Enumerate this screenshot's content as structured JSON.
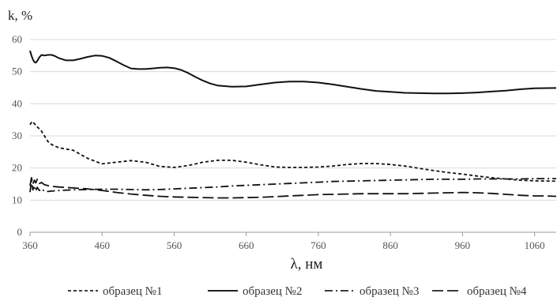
{
  "chart_data": {
    "type": "line",
    "ylabel": "k, %",
    "xlabel": "λ, нм",
    "xlim": [
      360,
      1090
    ],
    "ylim": [
      0,
      60
    ],
    "xticks": [
      360,
      460,
      560,
      660,
      760,
      860,
      960,
      1060
    ],
    "yticks": [
      0,
      10,
      20,
      30,
      40,
      50,
      60
    ],
    "grid": "horizontal",
    "legend_position": "bottom",
    "series": [
      {
        "name": "образец №1",
        "style": "dashed-short",
        "x": [
          360,
          363,
          366,
          370,
          375,
          380,
          385,
          390,
          400,
          420,
          440,
          460,
          480,
          500,
          520,
          540,
          560,
          580,
          600,
          620,
          640,
          660,
          680,
          700,
          720,
          740,
          760,
          780,
          800,
          820,
          840,
          860,
          880,
          900,
          920,
          940,
          960,
          980,
          1000,
          1020,
          1040,
          1060,
          1090
        ],
        "y": [
          33.5,
          34.5,
          33.8,
          32.8,
          31.8,
          30.0,
          28.2,
          27.3,
          26.3,
          25.5,
          23.0,
          21.3,
          21.8,
          22.3,
          21.8,
          20.5,
          20.2,
          20.8,
          21.8,
          22.4,
          22.4,
          21.8,
          21.0,
          20.3,
          20.2,
          20.2,
          20.3,
          20.6,
          21.1,
          21.4,
          21.4,
          21.1,
          20.6,
          19.9,
          19.2,
          18.6,
          18.1,
          17.5,
          17.0,
          16.6,
          16.2,
          16.0,
          15.9
        ]
      },
      {
        "name": "образец №2",
        "style": "solid",
        "x": [
          360,
          362,
          364,
          366,
          368,
          370,
          373,
          376,
          380,
          385,
          390,
          395,
          400,
          410,
          420,
          430,
          440,
          450,
          460,
          470,
          480,
          490,
          500,
          510,
          520,
          530,
          540,
          550,
          560,
          570,
          580,
          590,
          600,
          610,
          620,
          640,
          660,
          680,
          700,
          720,
          740,
          760,
          780,
          800,
          820,
          840,
          860,
          880,
          900,
          920,
          940,
          960,
          980,
          1000,
          1020,
          1040,
          1060,
          1090
        ],
        "y": [
          56.5,
          55.0,
          53.8,
          53.0,
          52.8,
          53.3,
          54.5,
          55.2,
          55.0,
          55.2,
          55.2,
          54.8,
          54.2,
          53.5,
          53.5,
          54.0,
          54.6,
          55.0,
          54.9,
          54.3,
          53.2,
          52.0,
          51.0,
          50.8,
          50.8,
          51.0,
          51.2,
          51.3,
          51.1,
          50.5,
          49.5,
          48.3,
          47.2,
          46.3,
          45.7,
          45.3,
          45.4,
          46.0,
          46.6,
          46.9,
          46.9,
          46.6,
          46.0,
          45.3,
          44.6,
          44.0,
          43.7,
          43.4,
          43.3,
          43.2,
          43.2,
          43.3,
          43.5,
          43.8,
          44.1,
          44.5,
          44.8,
          44.9
        ]
      },
      {
        "name": "образец №3",
        "style": "dash-dot",
        "x": [
          360,
          362,
          364,
          366,
          368,
          370,
          373,
          376,
          380,
          385,
          390,
          400,
          420,
          440,
          460,
          480,
          500,
          520,
          540,
          560,
          580,
          600,
          620,
          640,
          660,
          680,
          700,
          720,
          740,
          760,
          780,
          800,
          820,
          840,
          860,
          880,
          900,
          920,
          940,
          960,
          980,
          1000,
          1020,
          1040,
          1060,
          1090
        ],
        "y": [
          12.5,
          16.0,
          13.2,
          14.5,
          12.8,
          14.0,
          13.0,
          13.5,
          12.8,
          12.7,
          12.8,
          13.0,
          13.2,
          13.3,
          13.4,
          13.4,
          13.3,
          13.2,
          13.3,
          13.5,
          13.7,
          13.9,
          14.1,
          14.4,
          14.6,
          14.8,
          15.0,
          15.2,
          15.4,
          15.6,
          15.8,
          15.9,
          16.0,
          16.1,
          16.2,
          16.3,
          16.4,
          16.5,
          16.5,
          16.5,
          16.6,
          16.6,
          16.6,
          16.6,
          16.7,
          16.7
        ]
      },
      {
        "name": "образец №4",
        "style": "dashed-long",
        "x": [
          360,
          362,
          364,
          366,
          368,
          370,
          373,
          376,
          380,
          385,
          390,
          400,
          420,
          440,
          460,
          480,
          500,
          520,
          540,
          560,
          580,
          600,
          620,
          640,
          660,
          680,
          700,
          720,
          740,
          760,
          780,
          800,
          820,
          840,
          860,
          880,
          900,
          920,
          940,
          960,
          980,
          1000,
          1020,
          1040,
          1060,
          1075,
          1090
        ],
        "y": [
          14.5,
          17.0,
          15.0,
          16.2,
          15.4,
          16.5,
          15.2,
          15.5,
          14.8,
          14.5,
          14.3,
          14.1,
          13.8,
          13.5,
          13.0,
          12.4,
          11.9,
          11.5,
          11.2,
          11.0,
          10.9,
          10.8,
          10.7,
          10.7,
          10.8,
          10.9,
          11.1,
          11.3,
          11.5,
          11.7,
          11.8,
          11.9,
          12.0,
          12.0,
          12.0,
          12.0,
          12.1,
          12.2,
          12.3,
          12.4,
          12.3,
          12.1,
          11.8,
          11.5,
          11.3,
          11.3,
          11.2
        ]
      }
    ]
  }
}
